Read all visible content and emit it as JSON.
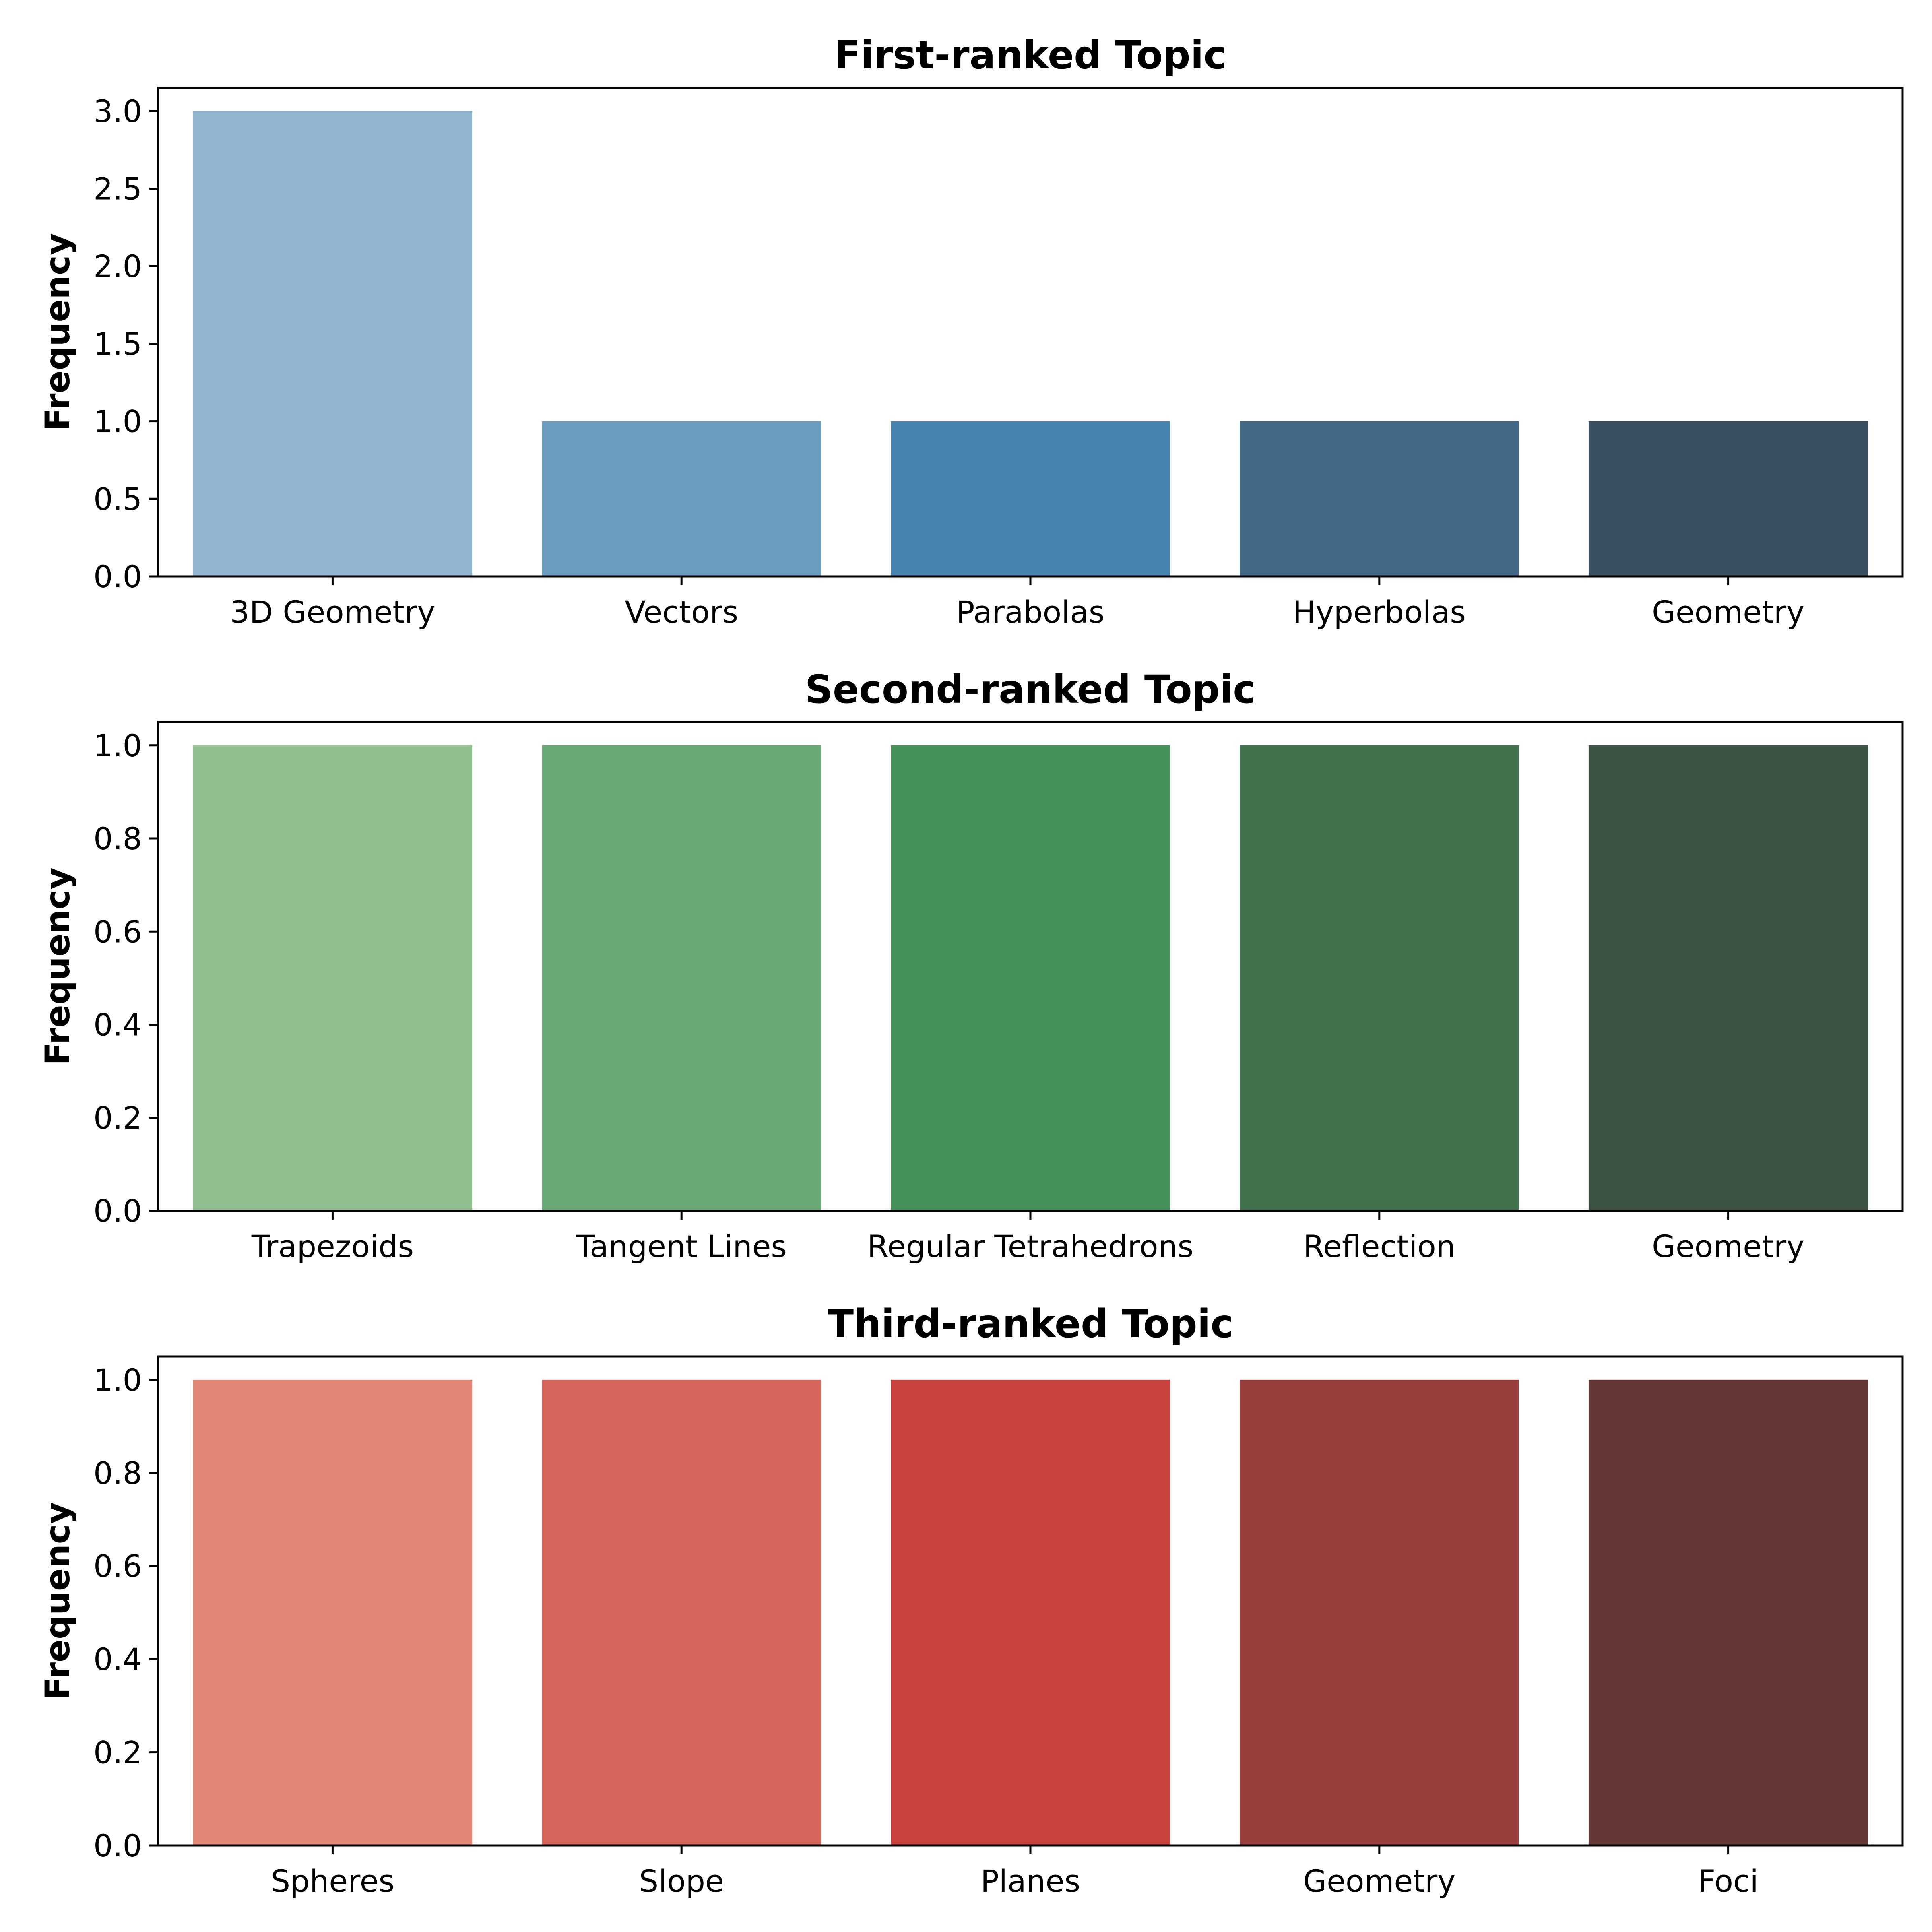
{
  "chart_data": [
    {
      "type": "bar",
      "title": "First-ranked Topic",
      "xlabel": "",
      "ylabel": "Frequency",
      "categories": [
        "3D Geometry",
        "Vectors",
        "Parabolas",
        "Hyperbolas",
        "Geometry"
      ],
      "values": [
        3,
        1,
        1,
        1,
        1
      ],
      "ylim": [
        0,
        3.15
      ],
      "yticks": [
        0.0,
        0.5,
        1.0,
        1.5,
        2.0,
        2.5,
        3.0
      ],
      "ytick_labels": [
        "0.0",
        "0.5",
        "1.0",
        "1.5",
        "2.0",
        "2.5",
        "3.0"
      ],
      "colors": [
        "#91b5cf",
        "#6b9dc0",
        "#4884b0",
        "#426886",
        "#3a4f60"
      ],
      "grid": false
    },
    {
      "type": "bar",
      "title": "Second-ranked Topic",
      "xlabel": "",
      "ylabel": "Frequency",
      "categories": [
        "Trapezoids",
        "Tangent Lines",
        "Regular Tetrahedrons",
        "Reflection",
        "Geometry"
      ],
      "values": [
        1,
        1,
        1,
        1,
        1
      ],
      "ylim": [
        0,
        1.05
      ],
      "yticks": [
        0.0,
        0.2,
        0.4,
        0.6,
        0.8,
        1.0
      ],
      "ytick_labels": [
        "0.0",
        "0.2",
        "0.4",
        "0.6",
        "0.8",
        "1.0"
      ],
      "colors": [
        "#90c08f",
        "#6aa975",
        "#44925a",
        "#40724d",
        "#3a5343"
      ],
      "grid": false
    },
    {
      "type": "bar",
      "title": "Third-ranked Topic",
      "xlabel": "",
      "ylabel": "Frequency",
      "categories": [
        "Spheres",
        "Slope",
        "Planes",
        "Geometry",
        "Foci"
      ],
      "values": [
        1,
        1,
        1,
        1,
        1
      ],
      "ylim": [
        0,
        1.05
      ],
      "yticks": [
        0.0,
        0.2,
        0.4,
        0.6,
        0.8,
        1.0
      ],
      "ytick_labels": [
        "0.0",
        "0.2",
        "0.4",
        "0.6",
        "0.8",
        "1.0"
      ],
      "colors": [
        "#e18675",
        "#d6665c",
        "#c9443f",
        "#973d3b",
        "#643636"
      ],
      "grid": false
    }
  ]
}
